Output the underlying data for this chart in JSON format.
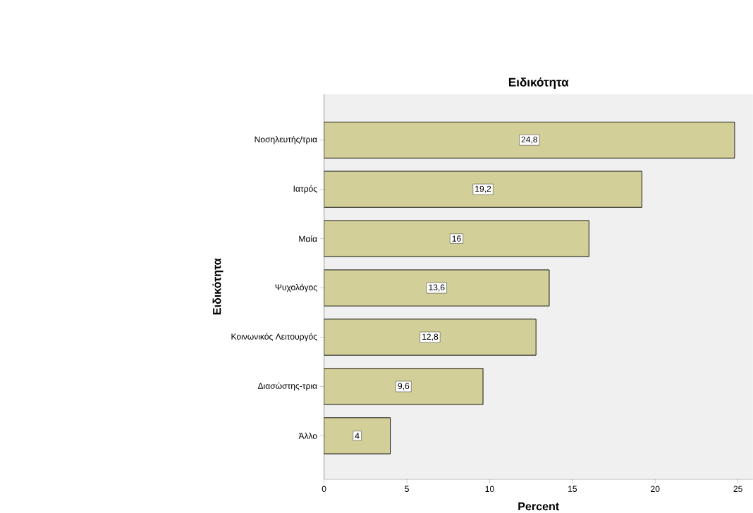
{
  "chart_data": {
    "type": "bar",
    "orientation": "horizontal",
    "title": "Ειδικότητα",
    "xlabel": "Percent",
    "ylabel": "Ειδικότητα",
    "categories": [
      "Νοσηλευτής/τρια",
      "Ιατρός",
      "Μαία",
      "Ψυχολόγος",
      "Κοινωνικός Λειτουργός",
      "Διασώστης-τρια",
      "Άλλο"
    ],
    "values": [
      24.8,
      19.2,
      16,
      13.6,
      12.8,
      9.6,
      4
    ],
    "value_labels": [
      "24,8",
      "19,2",
      "16",
      "13,6",
      "12,8",
      "9,6",
      "4"
    ],
    "color": "#d3cf99",
    "xlim": [
      0,
      25.9
    ],
    "xticks": [
      0,
      5,
      10,
      15,
      20,
      25
    ]
  }
}
